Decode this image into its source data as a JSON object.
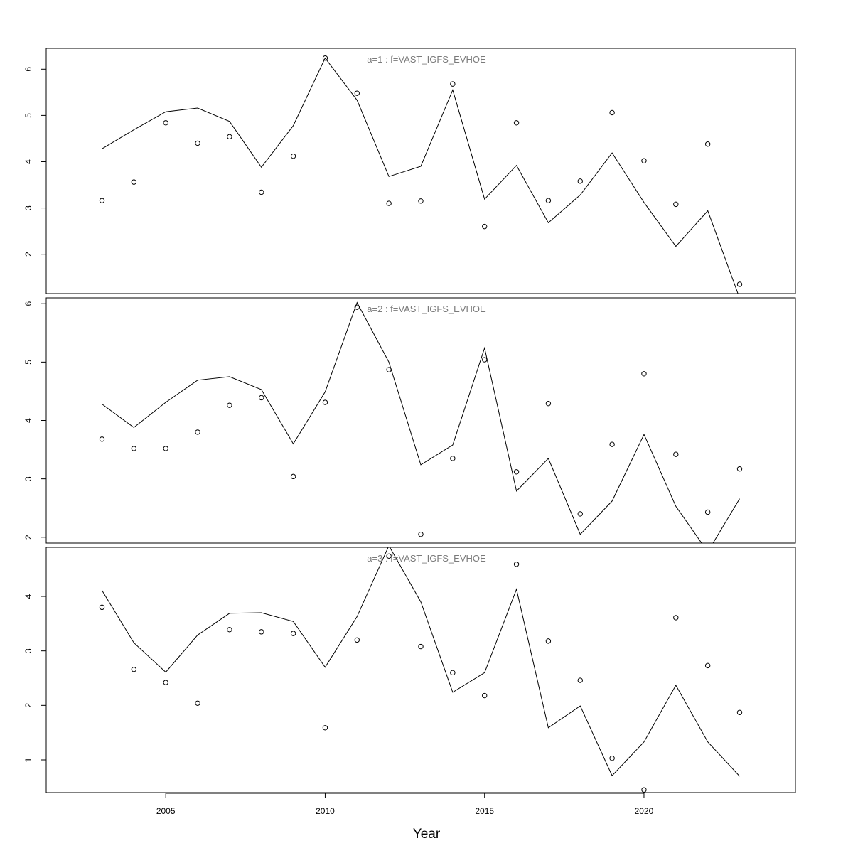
{
  "chart_data": {
    "type": "line",
    "xlabel": "Year",
    "x_ticks": [
      2005,
      2010,
      2015,
      2020
    ],
    "xlim": [
      2001.25,
      2024.75
    ],
    "colors": {
      "line": "#000000",
      "points": "#000000",
      "title": "#7a7a7a",
      "frame": "#000000"
    },
    "grid": false,
    "legend": "none",
    "panels": [
      {
        "title": "a=1  :  f=VAST_IGFS_EVHOE",
        "ylim": [
          1.15,
          6.45
        ],
        "y_ticks": [
          2,
          3,
          4,
          5,
          6
        ],
        "x": [
          2003,
          2004,
          2005,
          2006,
          2007,
          2008,
          2009,
          2010,
          2011,
          2012,
          2013,
          2014,
          2015,
          2016,
          2017,
          2018,
          2019,
          2020,
          2021,
          2022,
          2023
        ],
        "observed": [
          3.16,
          3.56,
          4.84,
          4.4,
          4.54,
          3.34,
          4.12,
          6.24,
          5.48,
          3.1,
          3.15,
          5.68,
          2.6,
          4.84,
          3.16,
          3.58,
          5.06,
          4.02,
          3.08,
          4.38,
          1.35
        ],
        "fitted": [
          4.28,
          4.69,
          5.08,
          5.16,
          4.87,
          3.88,
          4.78,
          6.24,
          5.33,
          3.68,
          3.9,
          5.55,
          3.19,
          3.92,
          2.68,
          3.28,
          4.19,
          3.12,
          2.17,
          2.94,
          1.05
        ]
      },
      {
        "title": "a=2  :  f=VAST_IGFS_EVHOE",
        "ylim": [
          1.9,
          6.1
        ],
        "y_ticks": [
          2,
          3,
          4,
          5,
          6
        ],
        "x": [
          2003,
          2004,
          2005,
          2006,
          2007,
          2008,
          2009,
          2010,
          2011,
          2012,
          2013,
          2014,
          2015,
          2016,
          2017,
          2018,
          2019,
          2020,
          2021,
          2022,
          2023
        ],
        "observed": [
          3.68,
          3.52,
          3.52,
          3.8,
          4.26,
          4.39,
          3.04,
          4.31,
          5.94,
          4.87,
          2.05,
          3.35,
          5.04,
          3.12,
          4.29,
          2.4,
          3.59,
          4.8,
          3.42,
          2.43,
          3.17
        ],
        "fitted": [
          4.28,
          3.88,
          4.31,
          4.69,
          4.75,
          4.53,
          3.6,
          4.49,
          6.02,
          5.0,
          3.24,
          3.58,
          5.24,
          2.79,
          3.35,
          2.05,
          2.62,
          3.76,
          2.53,
          1.75,
          2.66
        ]
      },
      {
        "title": "a=3  :  f=VAST_IGFS_EVHOE",
        "ylim": [
          0.4,
          4.9
        ],
        "y_ticks": [
          1,
          2,
          3,
          4
        ],
        "x": [
          2003,
          2004,
          2005,
          2006,
          2007,
          2008,
          2009,
          2010,
          2011,
          2012,
          2013,
          2014,
          2015,
          2016,
          2017,
          2018,
          2019,
          2020,
          2021,
          2022,
          2023
        ],
        "observed": [
          3.8,
          2.66,
          2.42,
          2.04,
          3.39,
          3.35,
          3.32,
          1.59,
          3.2,
          4.74,
          3.08,
          2.6,
          2.18,
          4.59,
          3.18,
          2.46,
          1.03,
          0.45,
          3.61,
          2.73,
          1.87
        ],
        "fitted": [
          4.11,
          3.15,
          2.61,
          3.29,
          3.69,
          3.7,
          3.54,
          2.7,
          3.63,
          4.93,
          3.9,
          2.24,
          2.6,
          4.13,
          1.59,
          1.99,
          0.71,
          1.33,
          2.37,
          1.33,
          0.7
        ]
      }
    ]
  }
}
